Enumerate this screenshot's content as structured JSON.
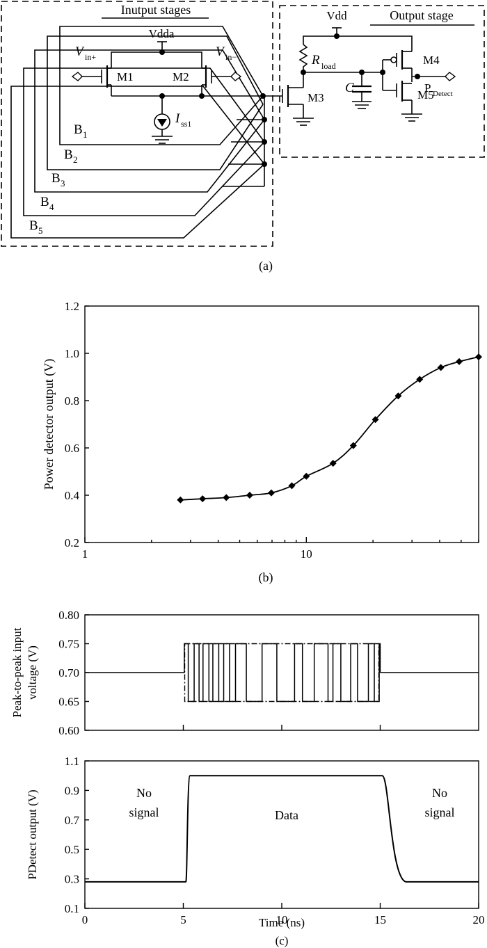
{
  "circuit": {
    "caption": "(a)",
    "input_box_label": "Inutput stages",
    "output_box_label": "Output stage",
    "vdda": "Vdda",
    "vdd": "Vdd",
    "vin_plus": {
      "main": "V",
      "sub": "in+"
    },
    "vin_minus": {
      "main": "V",
      "sub": "in−"
    },
    "m1": "M1",
    "m2": "M2",
    "m3": "M3",
    "m4": "M4",
    "m5": "M5",
    "iss": {
      "main": "I",
      "sub": "ss1"
    },
    "rload": {
      "main": "R",
      "sub": "load"
    },
    "cap": "C",
    "pout": {
      "main": "P",
      "sub": "Detect"
    },
    "bias": [
      {
        "main": "B",
        "sub": "1"
      },
      {
        "main": "B",
        "sub": "2"
      },
      {
        "main": "B",
        "sub": "3"
      },
      {
        "main": "B",
        "sub": "4"
      },
      {
        "main": "B",
        "sub": "5"
      }
    ]
  },
  "chart_b": {
    "caption": "(b)",
    "chart_data": {
      "type": "line",
      "xscale": "log",
      "xlim": [
        1,
        60
      ],
      "ylim": [
        0.2,
        1.2
      ],
      "xticks": [
        1,
        10
      ],
      "xtick_labels": [
        "1",
        "10"
      ],
      "yticks": [
        0.2,
        0.4,
        0.6,
        0.8,
        1.0,
        1.2
      ],
      "ytick_labels": [
        "0.2",
        "0.4",
        "0.6",
        "0.8",
        "1.0",
        "1.2"
      ],
      "ylabel": "Power detector output (V)",
      "xlabel": "",
      "marker": "diamond",
      "x": [
        2.7,
        3.4,
        4.35,
        5.55,
        6.95,
        8.6,
        10.0,
        13.2,
        16.3,
        20.5,
        26.0,
        32.5,
        40.5,
        49.0,
        60.0
      ],
      "y": [
        0.38,
        0.385,
        0.39,
        0.4,
        0.41,
        0.44,
        0.48,
        0.535,
        0.61,
        0.72,
        0.82,
        0.89,
        0.94,
        0.965,
        0.985
      ]
    }
  },
  "chart_c": {
    "caption": "(c)",
    "top": {
      "chart_data": {
        "type": "line",
        "xlim": [
          0,
          20
        ],
        "ylim": [
          0.6,
          0.8
        ],
        "yticks": [
          0.6,
          0.65,
          0.7,
          0.75,
          0.8
        ],
        "ytick_labels": [
          "0.60",
          "0.65",
          "0.70",
          "0.75",
          "0.80"
        ],
        "ylabel_lines": [
          "Peak-to-peak input",
          "voltage (V)"
        ],
        "levels": {
          "idle": 0.7,
          "high": 0.75,
          "low": 0.65
        },
        "data_window": [
          5.0,
          15.0
        ],
        "toggle_times": [
          5.05,
          5.25,
          5.55,
          5.8,
          6.0,
          6.3,
          6.5,
          6.8,
          7.05,
          7.35,
          7.65,
          8.2,
          9.0,
          9.75,
          10.65,
          11.05,
          11.65,
          12.35,
          12.6,
          13.0,
          13.5,
          13.85,
          14.4,
          14.7,
          14.95
        ]
      }
    },
    "bottom": {
      "chart_data": {
        "type": "line",
        "xlim": [
          0,
          20
        ],
        "ylim": [
          0.1,
          1.1
        ],
        "xticks": [
          0,
          5,
          10,
          15,
          20
        ],
        "xtick_labels": [
          "0",
          "5",
          "10",
          "15",
          "20"
        ],
        "yticks": [
          0.1,
          0.3,
          0.5,
          0.7,
          0.9,
          1.1
        ],
        "ytick_labels": [
          "0.1",
          "0.3",
          "0.5",
          "0.7",
          "0.9",
          "1.1"
        ],
        "ylabel": "PDetect output (V)",
        "xlabel": "Time (ns)",
        "low_level": 0.28,
        "high_level": 1.0,
        "rise_time": 5.2,
        "fall_start": 15.1,
        "fall_end": 16.3,
        "annotations": [
          {
            "lines": [
              "No",
              "signal"
            ]
          },
          {
            "lines": [
              "Data"
            ]
          },
          {
            "lines": [
              "No",
              "signal"
            ]
          }
        ]
      }
    }
  }
}
